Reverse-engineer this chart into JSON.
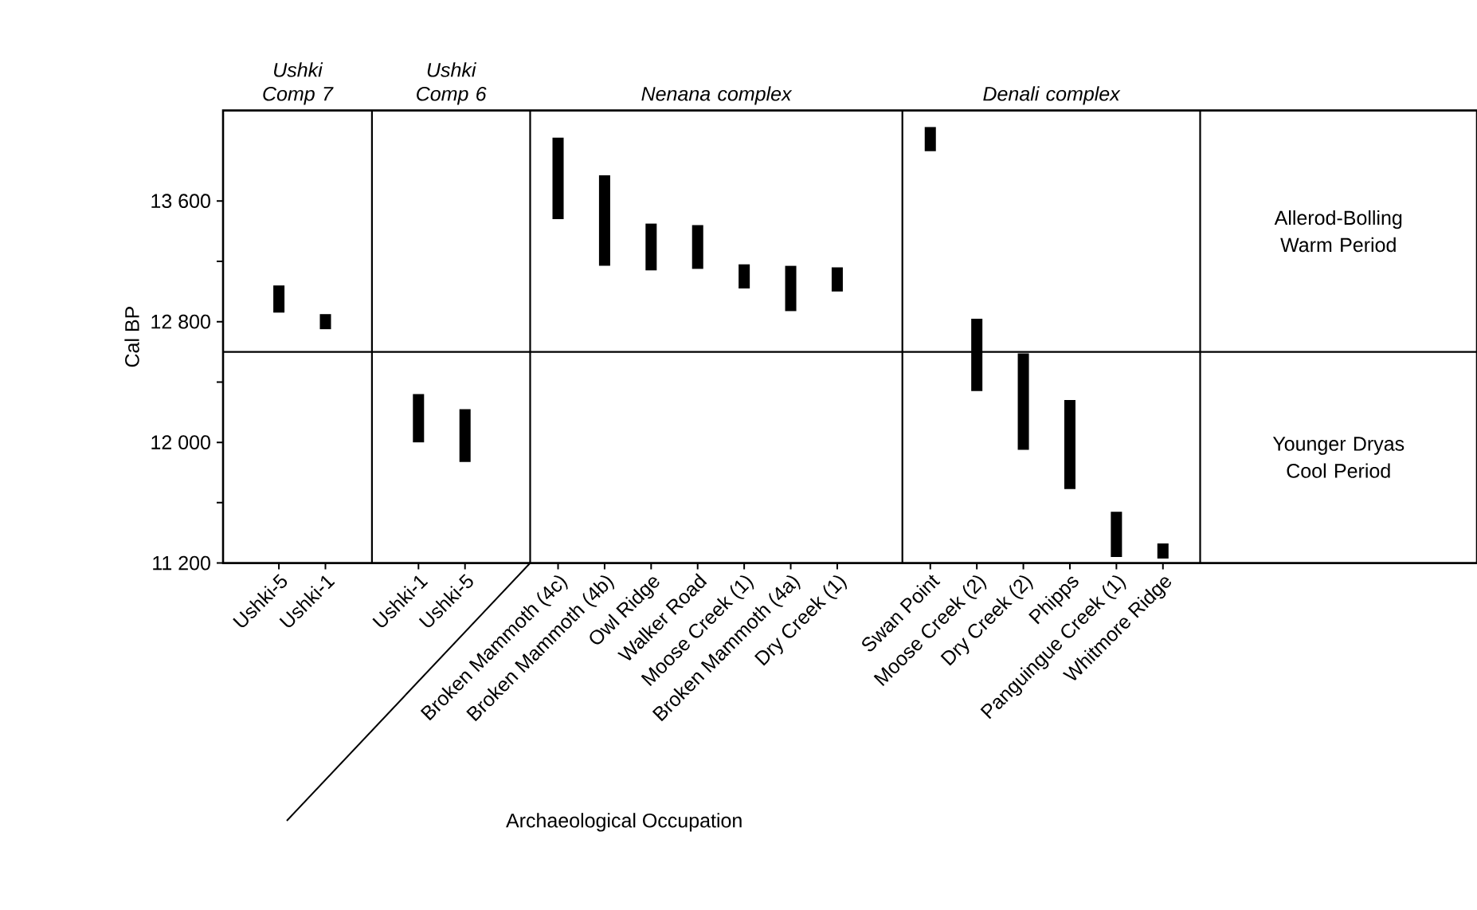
{
  "chart_data": {
    "type": "bar",
    "xlabel": "Archaeological Occupation",
    "ylabel": "Cal BP",
    "categories": [
      "Ushki-5",
      "Ushki-1",
      null,
      "Ushki-1",
      "Ushki-5",
      null,
      "Broken Mammoth (4c)",
      "Broken Mammoth (4b)",
      "Owl Ridge",
      "Walker Road",
      "Moose Creek (1)",
      "Broken Mammoth (4a)",
      "Dry Creek (1)",
      null,
      "Swan Point",
      "Moose Creek (2)",
      "Dry Creek (2)",
      "Phipps",
      "Panguingue Creek (1)",
      "Whitmore Ridge"
    ],
    "base": [
      12860,
      12750,
      null,
      12000,
      11870,
      null,
      13480,
      13170,
      13140,
      13150,
      13020,
      12870,
      13000,
      null,
      13930,
      12340,
      11950,
      11690,
      11240,
      11230
    ],
    "values": [
      180,
      100,
      null,
      320,
      350,
      null,
      540,
      600,
      310,
      290,
      160,
      300,
      160,
      null,
      160,
      480,
      640,
      590,
      300,
      100
    ],
    "color": "#000000",
    "ylim": [
      11200,
      14200
    ],
    "yticks": [
      {
        "value": 11200,
        "label": "11 200"
      },
      {
        "value": 12000,
        "label": "12 000"
      },
      {
        "value": 12800,
        "label": "12 800"
      },
      {
        "value": 13600,
        "label": "13 600"
      }
    ],
    "ref_lines": [
      {
        "axis": "y",
        "value": 12600
      }
    ],
    "annotations": [
      "Ushki Comp 7",
      "Ushki Comp 6",
      "Nenana complex",
      "Denali complex",
      "Allerod-Bolling Warm Period",
      "Younger Dryas Cool Period"
    ]
  }
}
